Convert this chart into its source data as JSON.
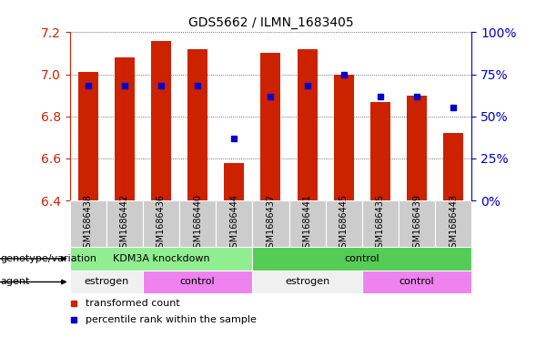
{
  "title": "GDS5662 / ILMN_1683405",
  "samples": [
    "GSM1686438",
    "GSM1686442",
    "GSM1686436",
    "GSM1686440",
    "GSM1686444",
    "GSM1686437",
    "GSM1686441",
    "GSM1686445",
    "GSM1686435",
    "GSM1686439",
    "GSM1686443"
  ],
  "bar_values": [
    7.01,
    7.08,
    7.16,
    7.12,
    6.58,
    7.1,
    7.12,
    7.0,
    6.87,
    6.9,
    6.72
  ],
  "percentile_values": [
    68,
    68,
    68,
    68,
    37,
    62,
    68,
    75,
    62,
    62,
    55
  ],
  "ylim_left": [
    6.4,
    7.2
  ],
  "ylim_right": [
    0,
    100
  ],
  "yticks_left": [
    6.4,
    6.6,
    6.8,
    7.0,
    7.2
  ],
  "yticks_right": [
    0,
    25,
    50,
    75,
    100
  ],
  "bar_color": "#cc2200",
  "dot_color": "#0000cc",
  "grid_color": "#444444",
  "axis_left_color": "#cc2200",
  "axis_right_color": "#0000cc",
  "groups": [
    {
      "label": "KDM3A knockdown",
      "start": 0,
      "end": 5,
      "color": "#90ee90"
    },
    {
      "label": "control",
      "start": 5,
      "end": 11,
      "color": "#55cc55"
    }
  ],
  "agent_groups": [
    {
      "label": "estrogen",
      "start": 0,
      "end": 2,
      "color": "#f0f0f0"
    },
    {
      "label": "control",
      "start": 2,
      "end": 5,
      "color": "#ee82ee"
    },
    {
      "label": "estrogen",
      "start": 5,
      "end": 8,
      "color": "#f0f0f0"
    },
    {
      "label": "control",
      "start": 8,
      "end": 11,
      "color": "#ee82ee"
    }
  ],
  "legend_items": [
    {
      "label": "transformed count",
      "color": "#cc2200"
    },
    {
      "label": "percentile rank within the sample",
      "color": "#0000cc"
    }
  ],
  "genotype_label": "genotype/variation",
  "agent_label": "agent",
  "bar_width": 0.55,
  "background_color": "#ffffff",
  "plot_bg_color": "#ffffff",
  "tick_bg_color": "#cccccc",
  "sample_fontsize": 7,
  "title_fontsize": 10,
  "annot_fontsize": 8,
  "legend_fontsize": 8
}
